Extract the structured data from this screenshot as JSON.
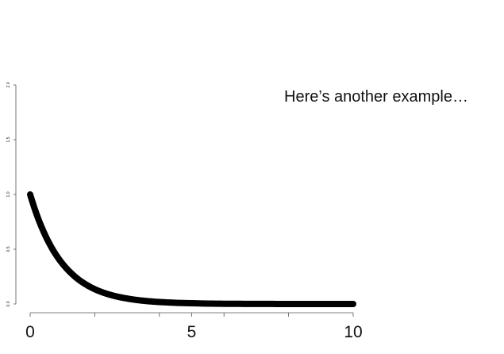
{
  "chart_data": {
    "type": "line",
    "annotation": "Here’s another example…",
    "x": [
      0,
      0.25,
      0.5,
      0.75,
      1,
      1.25,
      1.5,
      1.75,
      2,
      2.5,
      3,
      3.5,
      4,
      4.5,
      5,
      6,
      7,
      8,
      9,
      10
    ],
    "y": [
      1.0,
      0.779,
      0.607,
      0.472,
      0.368,
      0.287,
      0.223,
      0.174,
      0.135,
      0.082,
      0.05,
      0.03,
      0.018,
      0.011,
      0.007,
      0.002,
      0.001,
      0.0,
      0.0,
      0.0
    ],
    "xlim": [
      0,
      10
    ],
    "ylim": [
      0,
      2
    ],
    "x_ticks": [
      0,
      5,
      10
    ],
    "x_minor_ticks": [
      2,
      4,
      6,
      8
    ],
    "y_ticks": [
      0.0,
      0.5,
      1.0,
      1.5,
      2.0
    ],
    "x_tick_labels": [
      "0",
      "5",
      "10"
    ],
    "y_tick_labels": [
      "0.0",
      "0.5",
      "1.0",
      "1.5",
      "2.0"
    ],
    "grid": false,
    "line_color": "#000000"
  }
}
